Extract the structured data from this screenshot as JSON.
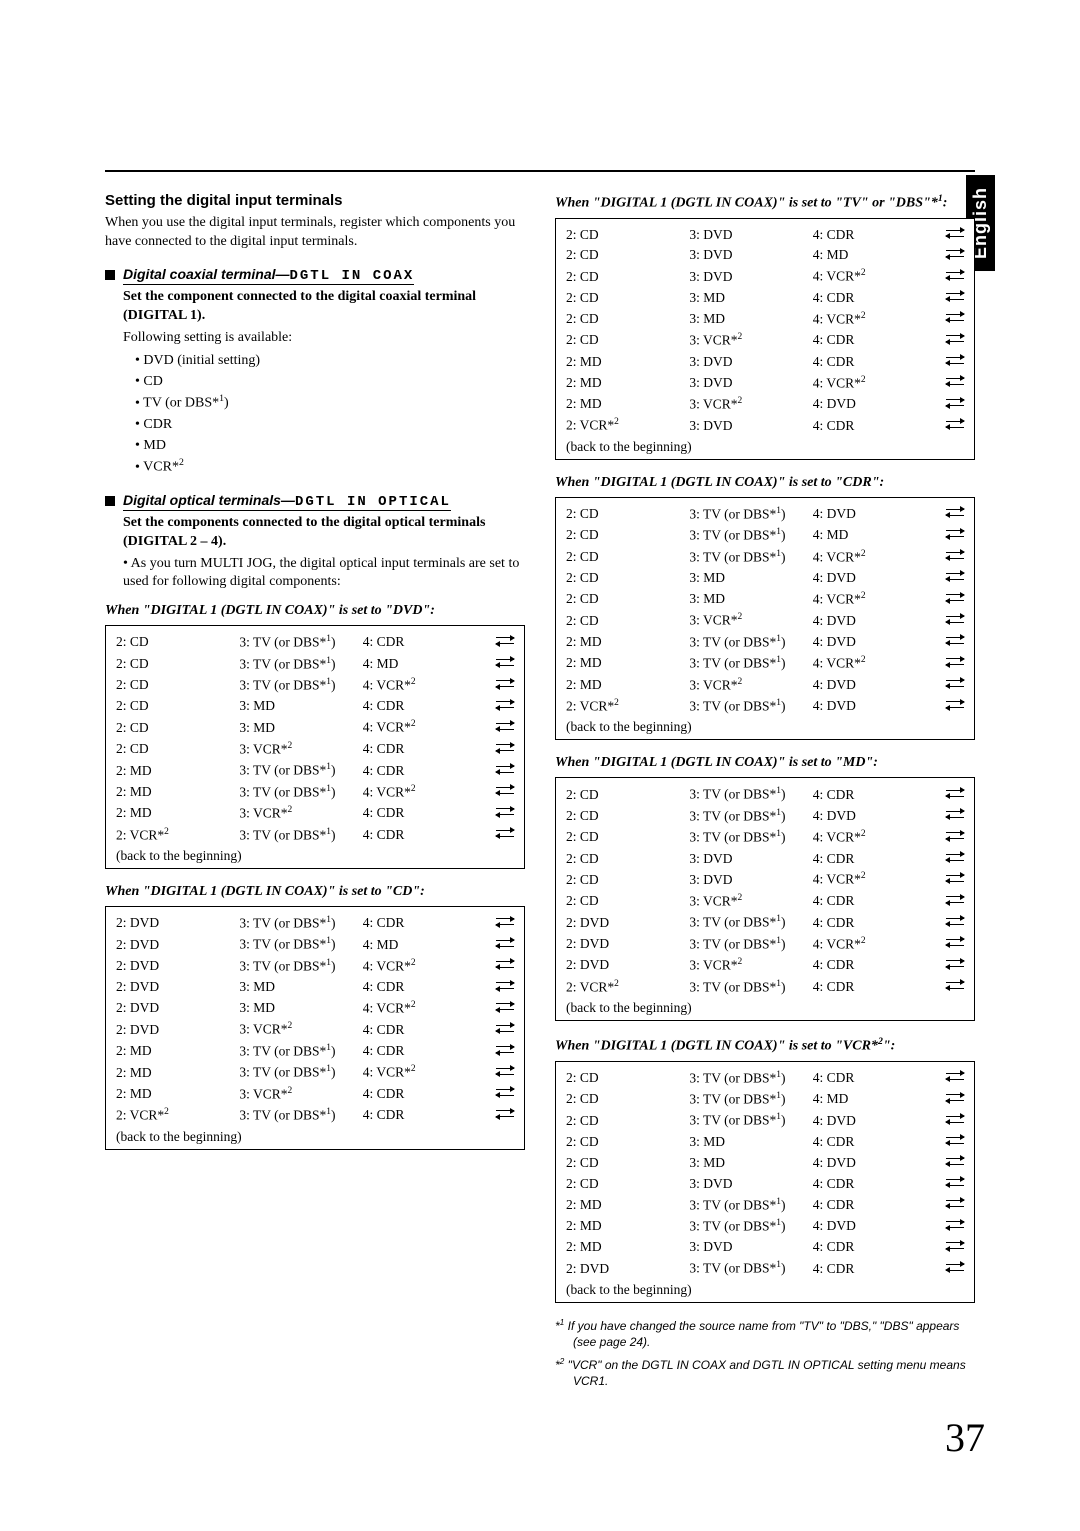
{
  "language_tab": "English",
  "page_number": "37",
  "left": {
    "title": "Setting the digital input terminals",
    "intro": "When you use the digital input terminals, register which components you have connected to the digital input terminals.",
    "section1": {
      "heading_prefix": "Digital coaxial terminal—",
      "heading_mono": "DGTL IN COAX",
      "set_line": "Set the component connected to the digital coaxial terminal (DIGITAL 1).",
      "following": "Following setting is available:",
      "bullets": [
        "DVD (initial setting)",
        "CD",
        "TV (or DBS*¹)",
        "CDR",
        "MD",
        "VCR*²"
      ]
    },
    "section2": {
      "heading_prefix": "Digital optical terminals—",
      "heading_mono": "DGTL IN OPTICAL",
      "set_line": "Set the components connected to the digital optical terminals (DIGITAL 2 – 4).",
      "note": "• As you turn MULTI JOG, the digital optical input terminals are set to used for following digital components:"
    },
    "table_dvd": {
      "caption": "When \"DIGITAL 1 (DGTL IN COAX)\" is set to \"DVD\":",
      "rows": [
        [
          "2: CD",
          "3: TV (or DBS*¹)",
          "4: CDR"
        ],
        [
          "2: CD",
          "3: TV (or DBS*¹)",
          "4: MD"
        ],
        [
          "2: CD",
          "3: TV (or DBS*¹)",
          "4: VCR*²"
        ],
        [
          "2: CD",
          "3: MD",
          "4: CDR"
        ],
        [
          "2: CD",
          "3: MD",
          "4: VCR*²"
        ],
        [
          "2: CD",
          "3: VCR*²",
          "4: CDR"
        ],
        [
          "2: MD",
          "3: TV (or DBS*¹)",
          "4: CDR"
        ],
        [
          "2: MD",
          "3: TV (or DBS*¹)",
          "4: VCR*²"
        ],
        [
          "2: MD",
          "3: VCR*²",
          "4: CDR"
        ],
        [
          "2: VCR*²",
          "3: TV (or DBS*¹)",
          "4: CDR"
        ]
      ],
      "back": "(back to the beginning)"
    },
    "table_cd": {
      "caption": "When \"DIGITAL 1 (DGTL IN COAX)\" is set to \"CD\":",
      "rows": [
        [
          "2: DVD",
          "3: TV (or DBS*¹)",
          "4: CDR"
        ],
        [
          "2: DVD",
          "3: TV (or DBS*¹)",
          "4: MD"
        ],
        [
          "2: DVD",
          "3: TV (or DBS*¹)",
          "4: VCR*²"
        ],
        [
          "2: DVD",
          "3: MD",
          "4: CDR"
        ],
        [
          "2: DVD",
          "3: MD",
          "4: VCR*²"
        ],
        [
          "2: DVD",
          "3: VCR*²",
          "4: CDR"
        ],
        [
          "2: MD",
          "3: TV (or DBS*¹)",
          "4: CDR"
        ],
        [
          "2: MD",
          "3: TV (or DBS*¹)",
          "4: VCR*²"
        ],
        [
          "2: MD",
          "3: VCR*²",
          "4: CDR"
        ],
        [
          "2: VCR*²",
          "3: TV (or DBS*¹)",
          "4: CDR"
        ]
      ],
      "back": "(back to the beginning)"
    }
  },
  "right": {
    "table_tv": {
      "caption": "When \"DIGITAL 1 (DGTL IN COAX)\" is set to \"TV\" or \"DBS\"*¹:",
      "rows": [
        [
          "2: CD",
          "3: DVD",
          "4: CDR"
        ],
        [
          "2: CD",
          "3: DVD",
          "4: MD"
        ],
        [
          "2: CD",
          "3: DVD",
          "4: VCR*²"
        ],
        [
          "2: CD",
          "3: MD",
          "4: CDR"
        ],
        [
          "2: CD",
          "3: MD",
          "4: VCR*²"
        ],
        [
          "2: CD",
          "3: VCR*²",
          "4: CDR"
        ],
        [
          "2: MD",
          "3: DVD",
          "4: CDR"
        ],
        [
          "2: MD",
          "3: DVD",
          "4: VCR*²"
        ],
        [
          "2: MD",
          "3: VCR*²",
          "4: DVD"
        ],
        [
          "2: VCR*²",
          "3: DVD",
          "4: CDR"
        ]
      ],
      "back": "(back to the beginning)"
    },
    "table_cdr": {
      "caption": "When \"DIGITAL 1 (DGTL IN COAX)\" is set to \"CDR\":",
      "rows": [
        [
          "2: CD",
          "3: TV (or DBS*¹)",
          "4: DVD"
        ],
        [
          "2: CD",
          "3: TV (or DBS*¹)",
          "4: MD"
        ],
        [
          "2: CD",
          "3: TV (or DBS*¹)",
          "4: VCR*²"
        ],
        [
          "2: CD",
          "3: MD",
          "4: DVD"
        ],
        [
          "2: CD",
          "3: MD",
          "4: VCR*²"
        ],
        [
          "2: CD",
          "3: VCR*²",
          "4: DVD"
        ],
        [
          "2: MD",
          "3: TV (or DBS*¹)",
          "4: DVD"
        ],
        [
          "2: MD",
          "3: TV (or DBS*¹)",
          "4: VCR*²"
        ],
        [
          "2: MD",
          "3: VCR*²",
          "4: DVD"
        ],
        [
          "2: VCR*²",
          "3: TV (or DBS*¹)",
          "4: DVD"
        ]
      ],
      "back": "(back to the beginning)"
    },
    "table_md": {
      "caption": "When \"DIGITAL 1 (DGTL IN COAX)\" is set to \"MD\":",
      "rows": [
        [
          "2: CD",
          "3: TV (or DBS*¹)",
          "4: CDR"
        ],
        [
          "2: CD",
          "3: TV (or DBS*¹)",
          "4: DVD"
        ],
        [
          "2: CD",
          "3: TV (or DBS*¹)",
          "4: VCR*²"
        ],
        [
          "2: CD",
          "3: DVD",
          "4: CDR"
        ],
        [
          "2: CD",
          "3: DVD",
          "4: VCR*²"
        ],
        [
          "2: CD",
          "3: VCR*²",
          "4: CDR"
        ],
        [
          "2: DVD",
          "3: TV (or DBS*¹)",
          "4: CDR"
        ],
        [
          "2: DVD",
          "3: TV (or DBS*¹)",
          "4: VCR*²"
        ],
        [
          "2: DVD",
          "3: VCR*²",
          "4: CDR"
        ],
        [
          "2: VCR*²",
          "3: TV (or DBS*¹)",
          "4: CDR"
        ]
      ],
      "back": "(back to the beginning)"
    },
    "table_vcr": {
      "caption": "When \"DIGITAL 1 (DGTL IN COAX)\" is set to \"VCR*²\":",
      "rows": [
        [
          "2: CD",
          "3: TV (or DBS*¹)",
          "4: CDR"
        ],
        [
          "2: CD",
          "3: TV (or DBS*¹)",
          "4: MD"
        ],
        [
          "2: CD",
          "3: TV (or DBS*¹)",
          "4: DVD"
        ],
        [
          "2: CD",
          "3: MD",
          "4: CDR"
        ],
        [
          "2: CD",
          "3: MD",
          "4: DVD"
        ],
        [
          "2: CD",
          "3: DVD",
          "4: CDR"
        ],
        [
          "2: MD",
          "3: TV (or DBS*¹)",
          "4: CDR"
        ],
        [
          "2: MD",
          "3: TV (or DBS*¹)",
          "4: DVD"
        ],
        [
          "2: MD",
          "3: DVD",
          "4: CDR"
        ],
        [
          "2: DVD",
          "3: TV (or DBS*¹)",
          "4: CDR"
        ]
      ],
      "back": "(back to the beginning)"
    },
    "footnotes": [
      "*1 If you have changed the source name from \"TV\" to \"DBS,\" \"DBS\" appears (see page 24).",
      "*2 \"VCR\" on the DGTL IN COAX and DGTL IN OPTICAL setting menu means VCR1."
    ]
  }
}
